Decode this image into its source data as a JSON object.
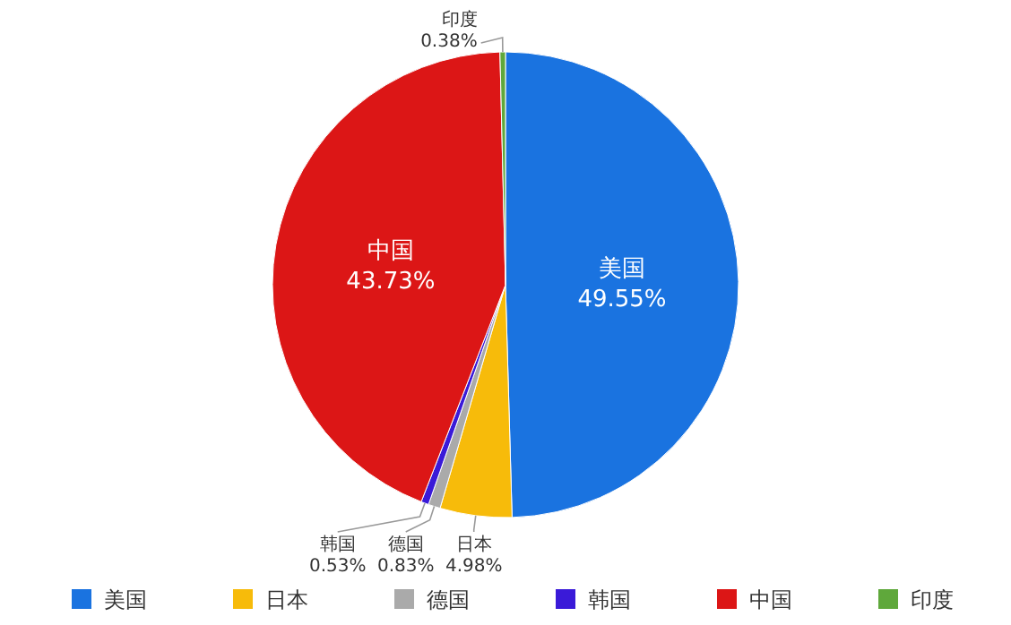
{
  "chart_data": {
    "type": "pie",
    "categories": [
      "美国",
      "日本",
      "德国",
      "韩国",
      "中国",
      "印度"
    ],
    "values": [
      49.55,
      4.98,
      0.83,
      0.53,
      43.73,
      0.38
    ],
    "colors": [
      "#1a73e0",
      "#f7bb0a",
      "#aaaaaa",
      "#3a1ad8",
      "#dc1616",
      "#5fa83b"
    ],
    "value_labels": [
      "49.55%",
      "4.98%",
      "0.83%",
      "0.53%",
      "43.73%",
      "0.38%"
    ],
    "legend": "bottom"
  }
}
